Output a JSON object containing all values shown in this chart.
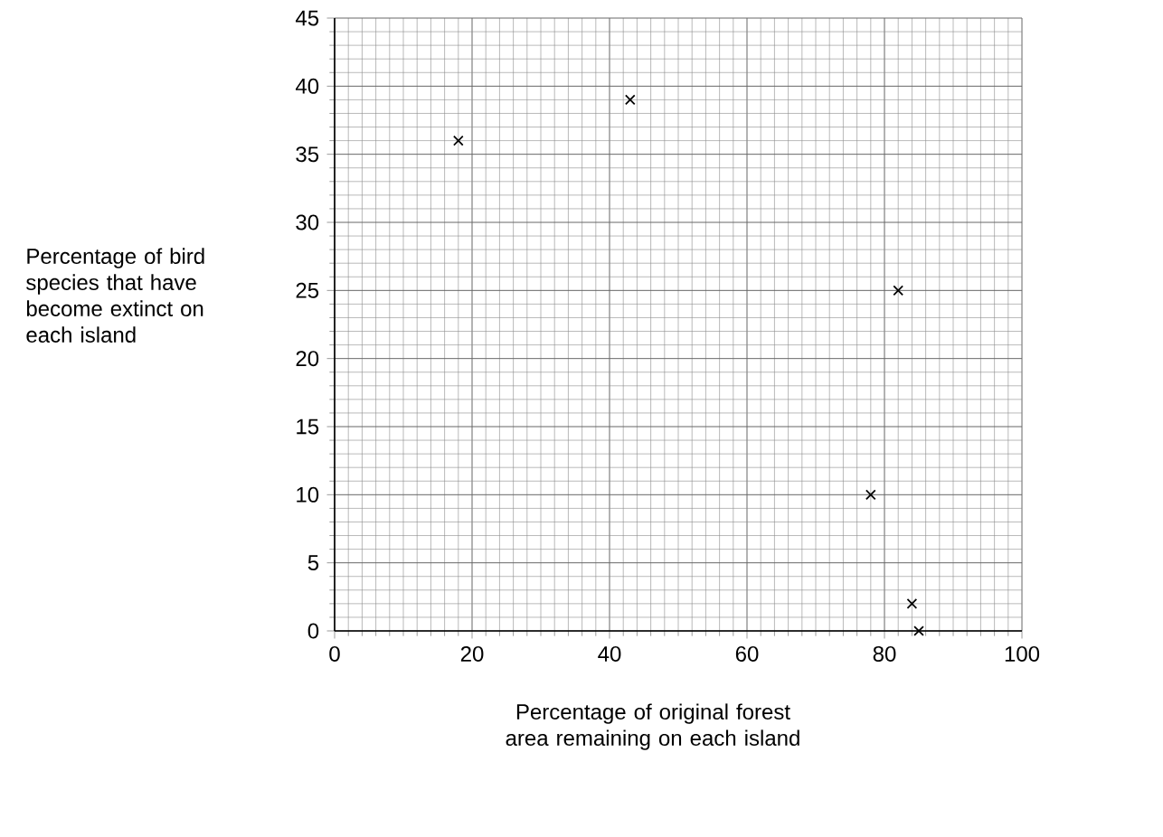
{
  "chart_data": {
    "type": "scatter",
    "xlabel": "Percentage of original forest area remaining on each island",
    "ylabel": "Percentage of bird species that have become extinct on each island",
    "x": [
      18,
      43,
      78,
      82,
      84,
      85
    ],
    "values": [
      36,
      39,
      10,
      25,
      2,
      0
    ],
    "color": "#000000",
    "marker": "cross",
    "xlim": [
      0,
      100
    ],
    "ylim": [
      0,
      45
    ],
    "xticks": [
      0,
      20,
      40,
      60,
      80,
      100
    ],
    "yticks": [
      0,
      5,
      10,
      15,
      20,
      25,
      30,
      35,
      40,
      45
    ],
    "grid": true
  }
}
